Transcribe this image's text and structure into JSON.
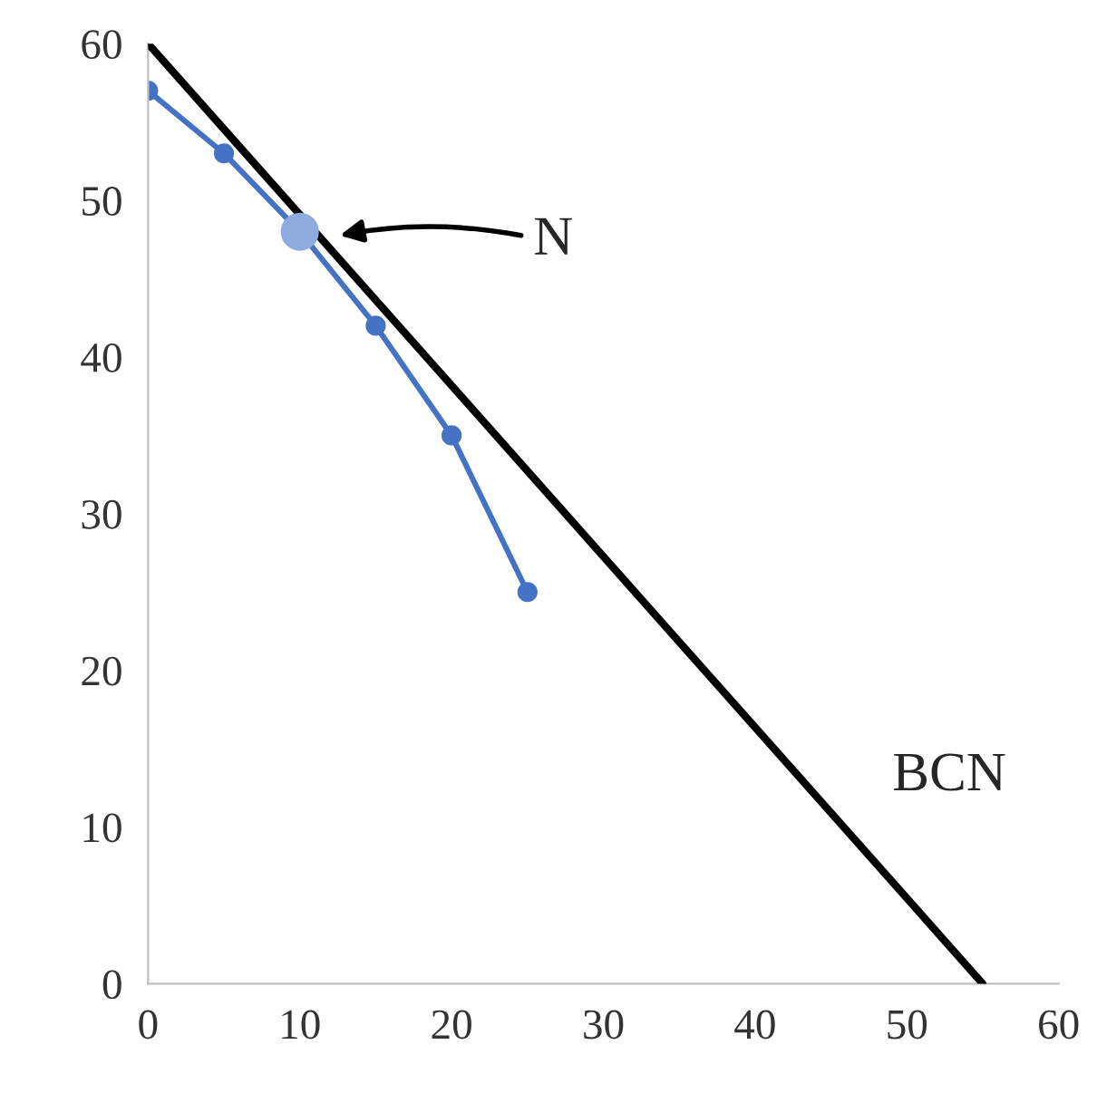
{
  "chart_data": {
    "type": "line",
    "xlim": [
      0,
      60
    ],
    "ylim": [
      0,
      60
    ],
    "xticks": [
      0,
      10,
      20,
      30,
      40,
      50,
      60
    ],
    "yticks": [
      0,
      10,
      20,
      30,
      40,
      50,
      60
    ],
    "grid": false,
    "legend": false,
    "series": [
      {
        "color": "#4472c4",
        "marker": "circle",
        "x": [
          0,
          5,
          10,
          15,
          20,
          25
        ],
        "values": [
          57,
          53,
          48,
          42,
          35,
          25
        ]
      },
      {
        "type": "scatter",
        "color": "#8faadc",
        "marker": "circle",
        "x": [
          10
        ],
        "values": [
          48
        ]
      },
      {
        "type": "line",
        "color": "#000000",
        "marker": "none",
        "x": [
          0,
          55
        ],
        "values": [
          60,
          0
        ]
      }
    ],
    "annotations": [
      "N",
      "BCN"
    ]
  }
}
